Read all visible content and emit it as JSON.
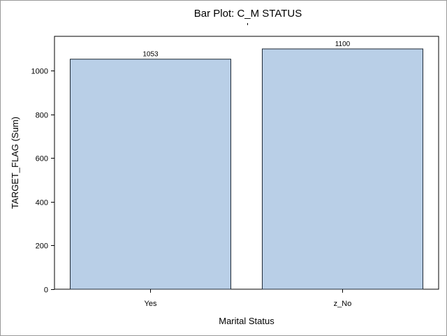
{
  "chart_data": {
    "type": "bar",
    "title": "Bar Plot: C_M STATUS",
    "xlabel": "Marital Status",
    "ylabel": "TARGET_FLAG (Sum)",
    "categories": [
      "Yes",
      "z_No"
    ],
    "values": [
      1053,
      1100
    ],
    "data_labels": [
      "1053",
      "1100"
    ],
    "ylim": [
      0,
      1100
    ],
    "yticks": [
      0,
      200,
      400,
      600,
      800,
      1000
    ],
    "grid": false,
    "legend": "none",
    "colors": {
      "bar_fill": "#b9cfe7",
      "bar_stroke": "#1f2a36",
      "axis": "#000000"
    }
  }
}
